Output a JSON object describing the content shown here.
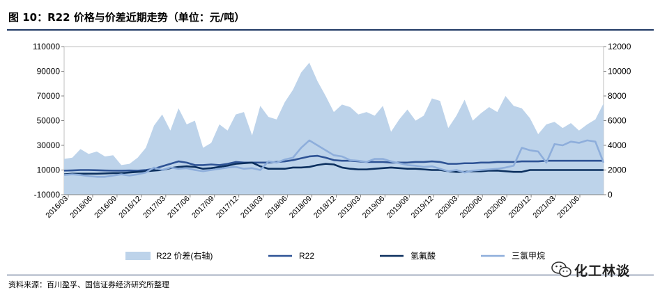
{
  "header": {
    "title": "图 10：R22 价格与价差近期走势（单位：元/吨）"
  },
  "footer": {
    "source": "资料来源：百川盈孚、国信证券经济研究所整理",
    "watermark": "化工林谈"
  },
  "chart_data": {
    "type": "line",
    "title": "R22 价格与价差近期走势（单位：元/吨）",
    "x_tick_labels": [
      "2016/03",
      "2016/06",
      "2016/09",
      "2016/12",
      "2017/03",
      "2017/06",
      "2017/09",
      "2017/12",
      "2018/03",
      "2018/06",
      "2018/09",
      "2018/12",
      "2019/03",
      "2019/06",
      "2019/09",
      "2019/12",
      "2020/03",
      "2020/06",
      "2020/09",
      "2020/12",
      "2021/03",
      "2021/06"
    ],
    "y_left": {
      "min": -10000,
      "max": 110000,
      "ticks": [
        -10000,
        10000,
        30000,
        50000,
        70000,
        90000,
        110000
      ]
    },
    "y_right": {
      "min": 0,
      "max": 12000,
      "ticks": [
        0,
        2000,
        4000,
        6000,
        8000,
        10000,
        12000
      ]
    },
    "x_domain": [
      0,
      66
    ],
    "colors": {
      "spread": "#bdd3ea",
      "r22": "#2e5395",
      "hf": "#0b2f5e",
      "chloroform": "#8eaedb"
    },
    "series": [
      {
        "name": "R22 价差(右轴)",
        "kind": "area",
        "axis": "right",
        "x": [
          0,
          1,
          2,
          3,
          4,
          5,
          6,
          7,
          8,
          9,
          10,
          11,
          12,
          13,
          14,
          15,
          16,
          17,
          18,
          19,
          20,
          21,
          22,
          23,
          24,
          25,
          26,
          27,
          28,
          29,
          30,
          31,
          32,
          33,
          34,
          35,
          36,
          37,
          38,
          39,
          40,
          41,
          42,
          43,
          44,
          45,
          46,
          47,
          48,
          49,
          50,
          51,
          52,
          53,
          54,
          55,
          56,
          57,
          58,
          59,
          60,
          61,
          62,
          63,
          64,
          65,
          66
        ],
        "values": [
          2900,
          3000,
          3700,
          3300,
          3500,
          3100,
          3200,
          2400,
          2500,
          3000,
          3800,
          5600,
          6500,
          5200,
          7000,
          5700,
          6000,
          3800,
          4200,
          5700,
          5200,
          6500,
          6700,
          4800,
          7200,
          6300,
          6100,
          7500,
          8500,
          9900,
          10700,
          9200,
          8000,
          6700,
          7300,
          7100,
          6500,
          6700,
          6400,
          7200,
          5100,
          6100,
          6900,
          6000,
          6400,
          7800,
          7600,
          5400,
          6400,
          7700,
          6000,
          6600,
          7100,
          6700,
          8000,
          7200,
          7000,
          6200,
          4900,
          5700,
          5900,
          5400,
          5800,
          5200,
          5700,
          6100,
          7400
        ]
      },
      {
        "name": "R22",
        "kind": "line",
        "axis": "left",
        "x": [
          0,
          1,
          2,
          3,
          4,
          5,
          6,
          7,
          8,
          9,
          10,
          11,
          12,
          13,
          14,
          15,
          16,
          17,
          18,
          19,
          20,
          21,
          22,
          23,
          24,
          25,
          26,
          27,
          28,
          29,
          30,
          31,
          32,
          33,
          34,
          35,
          36,
          37,
          38,
          39,
          40,
          41,
          42,
          43,
          44,
          45,
          46,
          47,
          48,
          49,
          50,
          51,
          52,
          53,
          54,
          55,
          56,
          57,
          58,
          59,
          60,
          61,
          62,
          63,
          64,
          65,
          66
        ],
        "values": [
          9500,
          9700,
          10000,
          10000,
          9800,
          9600,
          9500,
          9500,
          9600,
          9500,
          10000,
          11000,
          13000,
          15000,
          17000,
          16000,
          14000,
          14000,
          14500,
          14000,
          15000,
          16500,
          16000,
          16000,
          16000,
          16000,
          16500,
          17000,
          18000,
          19500,
          21000,
          21500,
          20000,
          18000,
          17500,
          17500,
          17000,
          16500,
          16500,
          16500,
          16000,
          16000,
          16000,
          16500,
          16500,
          17000,
          16500,
          15000,
          15000,
          15500,
          15500,
          16000,
          16000,
          16500,
          16500,
          16500,
          17000,
          17000,
          17000,
          17500,
          17500,
          17500,
          17500,
          17500,
          17500,
          17500,
          17500
        ]
      },
      {
        "name": "氢氟酸",
        "kind": "line",
        "axis": "left",
        "x": [
          0,
          1,
          2,
          3,
          4,
          5,
          6,
          7,
          8,
          9,
          10,
          11,
          12,
          13,
          14,
          15,
          16,
          17,
          18,
          19,
          20,
          21,
          22,
          23,
          24,
          25,
          26,
          27,
          28,
          29,
          30,
          31,
          32,
          33,
          34,
          35,
          36,
          37,
          38,
          39,
          40,
          41,
          42,
          43,
          44,
          45,
          46,
          47,
          48,
          49,
          50,
          51,
          52,
          53,
          54,
          55,
          56,
          57,
          58,
          59,
          60,
          61,
          62,
          63,
          64,
          65,
          66
        ],
        "values": [
          6500,
          7000,
          7000,
          7000,
          7000,
          7200,
          7500,
          7500,
          8000,
          8500,
          9000,
          9500,
          10000,
          11500,
          12500,
          13000,
          12500,
          11000,
          11500,
          12500,
          13500,
          15000,
          15500,
          16000,
          13000,
          11000,
          11000,
          11000,
          12000,
          12000,
          12500,
          14000,
          15000,
          14500,
          12000,
          11000,
          10500,
          10500,
          11000,
          11500,
          12000,
          11500,
          11000,
          11000,
          10500,
          10000,
          10000,
          9000,
          8500,
          8500,
          9000,
          9000,
          9500,
          9500,
          9000,
          8500,
          8500,
          10000,
          10000,
          10000,
          10000,
          10000,
          10000,
          10000,
          10000,
          10000,
          10000
        ]
      },
      {
        "name": "三氯甲烷",
        "kind": "line",
        "axis": "left",
        "x": [
          0,
          1,
          2,
          3,
          4,
          5,
          6,
          7,
          8,
          9,
          10,
          11,
          12,
          13,
          14,
          15,
          16,
          17,
          18,
          19,
          20,
          21,
          22,
          23,
          24,
          25,
          26,
          27,
          28,
          29,
          30,
          31,
          32,
          33,
          34,
          35,
          36,
          37,
          38,
          39,
          40,
          41,
          42,
          43,
          44,
          45,
          46,
          47,
          48,
          49,
          50,
          51,
          52,
          53,
          54,
          55,
          56,
          57,
          58,
          59,
          60,
          61,
          62,
          63,
          64,
          65,
          66
        ],
        "values": [
          6000,
          6500,
          6000,
          5000,
          4500,
          4500,
          5500,
          6500,
          5500,
          6500,
          8000,
          12000,
          10000,
          12000,
          11000,
          11500,
          10000,
          9000,
          10000,
          11000,
          12000,
          12500,
          11000,
          11500,
          10000,
          17000,
          16000,
          18500,
          20000,
          28000,
          34000,
          30000,
          26000,
          22000,
          21000,
          18000,
          17500,
          16500,
          19000,
          19000,
          17000,
          15500,
          14000,
          13500,
          12500,
          13000,
          11000,
          9000,
          10000,
          8000,
          9500,
          10000,
          10500,
          11000,
          12000,
          13500,
          28000,
          26000,
          25000,
          16000,
          31000,
          30000,
          33000,
          32000,
          34000,
          33000,
          16000
        ]
      }
    ]
  }
}
